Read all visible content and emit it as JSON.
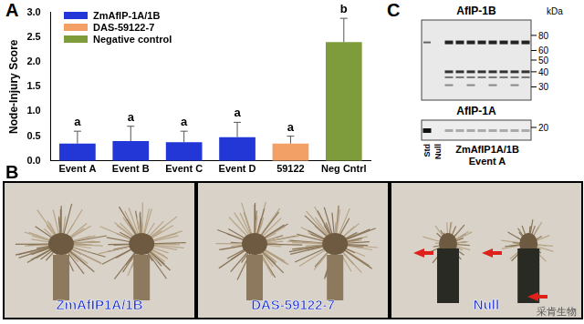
{
  "chart_data": {
    "type": "bar",
    "panel": "A",
    "categories": [
      "Event A",
      "Event B",
      "Event C",
      "Event D",
      "59122",
      "Neg Cntrl"
    ],
    "series": [
      {
        "name": "ZmAfIP-1A/1B",
        "color": "#2336d6",
        "values": [
          0.35,
          0.4,
          0.38,
          0.48,
          null,
          null
        ],
        "errors": [
          0.25,
          0.3,
          0.22,
          0.3,
          null,
          null
        ],
        "letters": [
          "a",
          "a",
          "a",
          "a",
          null,
          null
        ]
      },
      {
        "name": "DAS-59122-7",
        "color": "#f2a066",
        "values": [
          null,
          null,
          null,
          null,
          0.35,
          null
        ],
        "errors": [
          null,
          null,
          null,
          null,
          0.15,
          null
        ],
        "letters": [
          null,
          null,
          null,
          null,
          "a",
          null
        ]
      },
      {
        "name": "Negative control",
        "color": "#7f9c3c",
        "values": [
          null,
          null,
          null,
          null,
          null,
          2.4
        ],
        "errors": [
          null,
          null,
          null,
          null,
          null,
          0.48
        ],
        "letters": [
          null,
          null,
          null,
          null,
          null,
          "b"
        ]
      }
    ],
    "y_label": "Node-Injury Score",
    "ylim": [
      0,
      3
    ],
    "yticks": [
      {
        "value": 0,
        "label": "0.0"
      },
      {
        "value": 0.5,
        "label": "0.5"
      },
      {
        "value": 1,
        "label": "1.0"
      },
      {
        "value": 1.5,
        "label": "1.5"
      },
      {
        "value": 2,
        "label": "2.0"
      },
      {
        "value": 2.5,
        "label": "2.5"
      },
      {
        "value": 3,
        "label": "3.0"
      }
    ],
    "grid": false,
    "legend": "upper left"
  },
  "panel_b": {
    "label": "B",
    "photos": [
      "ZmAfIP1A/1B",
      "DAS-59122-7",
      "Null"
    ]
  },
  "panel_c": {
    "label": "C",
    "blots": [
      {
        "title": "AfIP-1B",
        "unit": "kDa",
        "markers": [
          80,
          60,
          50,
          40,
          30
        ]
      },
      {
        "title": "AfIP-1A",
        "markers": [
          20
        ]
      }
    ],
    "lanes": [
      "Std",
      "Null"
    ],
    "group": "ZmAfIP1A/1B",
    "event": "Event A"
  },
  "watermark": "采肯生物"
}
